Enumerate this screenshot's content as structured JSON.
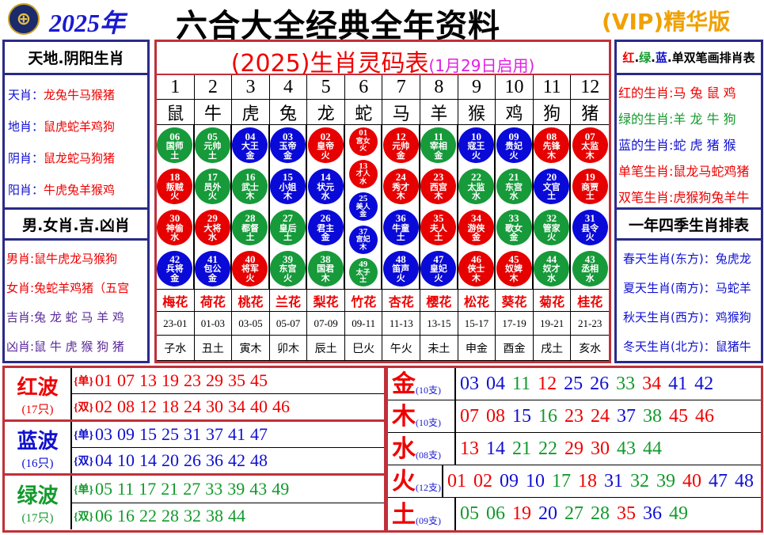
{
  "header": {
    "logo_icon": "hk-jockey-club-logo",
    "year": "2025年",
    "title": "六合大全经典全年资料",
    "vip": "(VIP)精华版"
  },
  "left": {
    "title1": "天地.阴阳生肖",
    "rows1": [
      {
        "k": "天肖：",
        "v": "龙兔牛马猴猪"
      },
      {
        "k": "地肖：",
        "v": "鼠虎蛇羊鸡狗"
      },
      {
        "k": "阴肖：",
        "v": "鼠龙蛇马狗猪"
      },
      {
        "k": "阳肖：",
        "v": "牛虎兔羊猴鸡"
      }
    ],
    "title2": "男.女肖.吉.凶肖",
    "rows2": [
      {
        "k": "男肖:",
        "v": "鼠牛虎龙马猴狗",
        "c": "r"
      },
      {
        "k": "女肖:",
        "v": "兔蛇羊鸡猪（五宫",
        "c": "r"
      },
      {
        "k": "吉肖:",
        "v": "兔 龙 蛇 马 羊 鸡",
        "c": "p"
      },
      {
        "k": "凶肖:",
        "v": "鼠 牛 虎 猴 狗 猪",
        "c": "p"
      }
    ]
  },
  "center": {
    "title": "(2025)生肖灵码表",
    "subtitle": "(1月29日启用)",
    "numbers": [
      "1",
      "2",
      "3",
      "4",
      "5",
      "6",
      "7",
      "8",
      "9",
      "10",
      "11",
      "12"
    ],
    "zodiac": [
      "鼠",
      "牛",
      "虎",
      "兔",
      "龙",
      "蛇",
      "马",
      "羊",
      "猴",
      "鸡",
      "狗",
      "猪"
    ],
    "balls": [
      [
        [
          "06",
          "国师",
          "土",
          "g"
        ],
        [
          "18",
          "叛贼",
          "火",
          "r"
        ],
        [
          "30",
          "神偷",
          "水",
          "r"
        ],
        [
          "42",
          "兵将",
          "金",
          "b"
        ]
      ],
      [
        [
          "05",
          "元帅",
          "土",
          "g"
        ],
        [
          "17",
          "员外",
          "火",
          "g"
        ],
        [
          "29",
          "大将",
          "水",
          "r"
        ],
        [
          "41",
          "包公",
          "金",
          "b"
        ]
      ],
      [
        [
          "04",
          "大王",
          "金",
          "b"
        ],
        [
          "16",
          "武士",
          "木",
          "g"
        ],
        [
          "28",
          "都督",
          "土",
          "g"
        ],
        [
          "40",
          "将军",
          "火",
          "r"
        ]
      ],
      [
        [
          "03",
          "玉帝",
          "金",
          "b"
        ],
        [
          "15",
          "小姐",
          "木",
          "b"
        ],
        [
          "27",
          "皇后",
          "土",
          "g"
        ],
        [
          "39",
          "东宫",
          "火",
          "g"
        ]
      ],
      [
        [
          "02",
          "皇帝",
          "火",
          "r"
        ],
        [
          "14",
          "状元",
          "水",
          "b"
        ],
        [
          "26",
          "君主",
          "金",
          "b"
        ],
        [
          "38",
          "国君",
          "木",
          "g"
        ]
      ],
      [
        [
          "01",
          "宫女",
          "火",
          "r"
        ],
        [
          "13",
          "才人",
          "水",
          "r"
        ],
        [
          "25",
          "美人",
          "金",
          "b"
        ],
        [
          "37",
          "宫妃",
          "木",
          "b"
        ],
        [
          "49",
          "太子",
          "土",
          "g"
        ]
      ],
      [
        [
          "12",
          "元帅",
          "金",
          "r"
        ],
        [
          "24",
          "秀才",
          "木",
          "r"
        ],
        [
          "36",
          "牛童",
          "土",
          "b"
        ],
        [
          "48",
          "笛声",
          "火",
          "b"
        ]
      ],
      [
        [
          "11",
          "宰相",
          "金",
          "g"
        ],
        [
          "23",
          "西宫",
          "木",
          "r"
        ],
        [
          "35",
          "夫人",
          "土",
          "r"
        ],
        [
          "47",
          "皇妃",
          "火",
          "b"
        ]
      ],
      [
        [
          "10",
          "寇王",
          "火",
          "b"
        ],
        [
          "22",
          "太监",
          "水",
          "g"
        ],
        [
          "34",
          "游侠",
          "金",
          "r"
        ],
        [
          "46",
          "侠士",
          "木",
          "r"
        ]
      ],
      [
        [
          "09",
          "贵妃",
          "火",
          "b"
        ],
        [
          "21",
          "东宫",
          "水",
          "g"
        ],
        [
          "33",
          "歌女",
          "金",
          "g"
        ],
        [
          "45",
          "奴婢",
          "木",
          "r"
        ]
      ],
      [
        [
          "08",
          "先锋",
          "木",
          "r"
        ],
        [
          "20",
          "文官",
          "土",
          "b"
        ],
        [
          "32",
          "管家",
          "火",
          "g"
        ],
        [
          "44",
          "奴才",
          "水",
          "g"
        ]
      ],
      [
        [
          "07",
          "太监",
          "木",
          "r"
        ],
        [
          "19",
          "商贾",
          "土",
          "r"
        ],
        [
          "31",
          "县令",
          "火",
          "b"
        ],
        [
          "43",
          "丞相",
          "水",
          "g"
        ]
      ]
    ],
    "flowers": [
      "梅花",
      "荷花",
      "桃花",
      "兰花",
      "梨花",
      "竹花",
      "杏花",
      "樱花",
      "松花",
      "葵花",
      "菊花",
      "桂花"
    ],
    "times": [
      "23-01",
      "01-03",
      "03-05",
      "05-07",
      "07-09",
      "09-11",
      "11-13",
      "13-15",
      "15-17",
      "17-19",
      "19-21",
      "21-23"
    ],
    "branches": [
      "子水",
      "丑土",
      "寅木",
      "卯木",
      "辰土",
      "巳火",
      "午火",
      "未土",
      "申金",
      "酉金",
      "戌土",
      "亥水"
    ]
  },
  "right": {
    "title1": [
      {
        "t": "红",
        "c": "r"
      },
      {
        "t": ".",
        "c": "k"
      },
      {
        "t": "绿",
        "c": "g"
      },
      {
        "t": ".",
        "c": "k"
      },
      {
        "t": "蓝",
        "c": "b"
      },
      {
        "t": ".单双笔画排肖表",
        "c": "k"
      }
    ],
    "rows1": [
      {
        "k": "红的生肖:",
        "v": "马 兔 鼠 鸡",
        "c": "r"
      },
      {
        "k": "绿的生肖:",
        "v": "羊 龙 牛 狗",
        "c": "g"
      },
      {
        "k": "蓝的生肖:",
        "v": "蛇 虎 猪 猴",
        "c": "b"
      },
      {
        "k": "单笔生肖:",
        "v": "鼠龙马蛇鸡猪",
        "c": "r"
      },
      {
        "k": "双笔生肖:",
        "v": "虎猴狗兔羊牛",
        "c": "r"
      }
    ],
    "title2": "一年四季生肖排表",
    "rows2": [
      {
        "k": "春天生肖(东方)：",
        "v": "兔虎龙"
      },
      {
        "k": "夏天生肖(南方)：",
        "v": "马蛇羊"
      },
      {
        "k": "秋天生肖(西方)：",
        "v": "鸡猴狗"
      },
      {
        "k": "冬天生肖(北方)：",
        "v": "鼠猪牛"
      }
    ]
  },
  "waves": [
    {
      "name": "红波",
      "count": "(17只)",
      "c": "r",
      "rows": [
        {
          "tag": "{单}",
          "nums": [
            "01",
            "07",
            "13",
            "19",
            "23",
            "29",
            "35",
            "45"
          ]
        },
        {
          "tag": "{双}",
          "nums": [
            "02",
            "08",
            "12",
            "18",
            "24",
            "30",
            "34",
            "40",
            "46"
          ]
        }
      ]
    },
    {
      "name": "蓝波",
      "count": "(16只)",
      "c": "b",
      "rows": [
        {
          "tag": "{单}",
          "nums": [
            "03",
            "09",
            "15",
            "25",
            "31",
            "37",
            "41",
            "47"
          ]
        },
        {
          "tag": "{双}",
          "nums": [
            "04",
            "10",
            "14",
            "20",
            "26",
            "36",
            "42",
            "48"
          ]
        }
      ]
    },
    {
      "name": "绿波",
      "count": "(17只)",
      "c": "g",
      "rows": [
        {
          "tag": "{单}",
          "nums": [
            "05",
            "11",
            "17",
            "21",
            "27",
            "33",
            "39",
            "43",
            "49"
          ]
        },
        {
          "tag": "{双}",
          "nums": [
            "06",
            "16",
            "22",
            "28",
            "32",
            "38",
            "44"
          ]
        }
      ]
    }
  ],
  "elements": [
    {
      "name": "金",
      "count": "(10支)",
      "nums": [
        "03",
        "04",
        "11",
        "12",
        "25",
        "26",
        "33",
        "34",
        "41",
        "42"
      ]
    },
    {
      "name": "木",
      "count": "(10支)",
      "nums": [
        "07",
        "08",
        "15",
        "16",
        "23",
        "24",
        "37",
        "38",
        "45",
        "46"
      ]
    },
    {
      "name": "水",
      "count": "(08支)",
      "nums": [
        "13",
        "14",
        "21",
        "22",
        "29",
        "30",
        "43",
        "44"
      ]
    },
    {
      "name": "火",
      "count": "(12支)",
      "nums": [
        "01",
        "02",
        "09",
        "10",
        "17",
        "18",
        "31",
        "32",
        "39",
        "40",
        "47",
        "48"
      ]
    },
    {
      "name": "土",
      "count": "(09支)",
      "nums": [
        "05",
        "06",
        "19",
        "20",
        "27",
        "28",
        "35",
        "36",
        "49"
      ]
    }
  ],
  "colors": {
    "red": "#e60000",
    "green": "#179a3a",
    "blue": "#0a0ad8",
    "frame_red": "#c0303a",
    "frame_blue": "#2a2a8a"
  }
}
